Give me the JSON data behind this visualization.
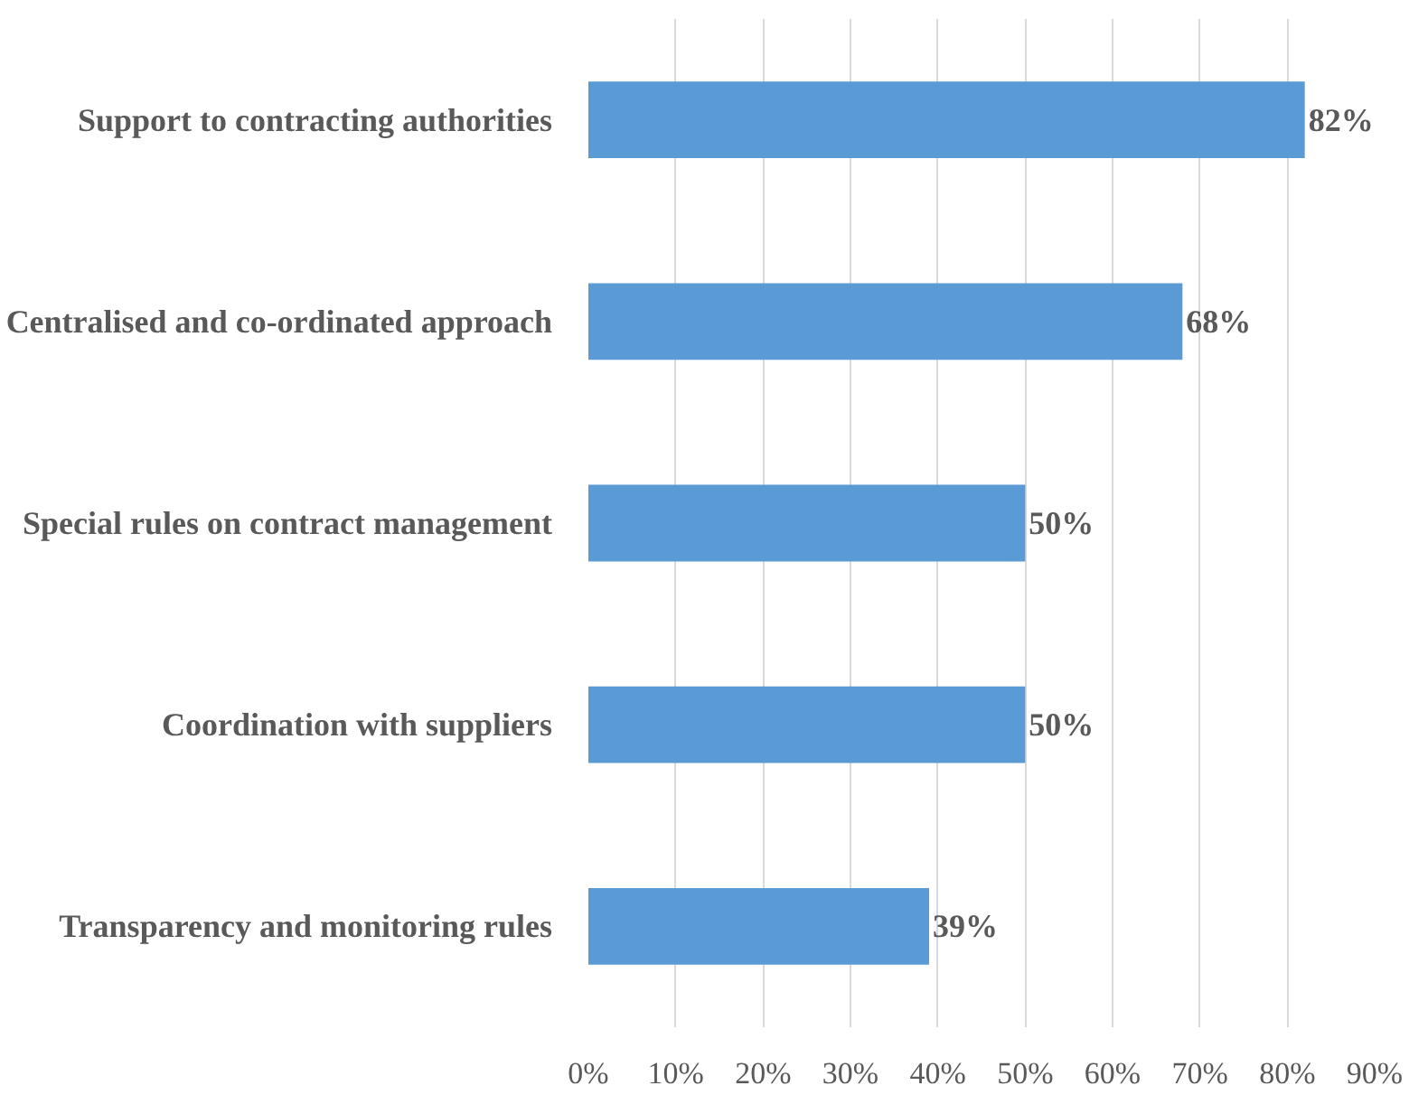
{
  "chart_data": {
    "type": "bar",
    "orientation": "horizontal",
    "categories": [
      "Support to contracting authorities",
      "Centralised and co-ordinated approach",
      "Special rules on contract management",
      "Coordination with suppliers",
      "Transparency and monitoring rules"
    ],
    "values": [
      82,
      68,
      50,
      50,
      39
    ],
    "value_labels": [
      "82%",
      "68%",
      "50%",
      "50%",
      "39%"
    ],
    "color": "#5b9bd5",
    "xlim": [
      0,
      90
    ],
    "xticks": [
      {
        "value": 0,
        "label": "0%"
      },
      {
        "value": 10,
        "label": "10%"
      },
      {
        "value": 20,
        "label": "20%"
      },
      {
        "value": 30,
        "label": "30%"
      },
      {
        "value": 40,
        "label": "40%"
      },
      {
        "value": 50,
        "label": "50%"
      },
      {
        "value": 60,
        "label": "60%"
      },
      {
        "value": 70,
        "label": "70%"
      },
      {
        "value": 80,
        "label": "80%"
      },
      {
        "value": 90,
        "label": "90%"
      }
    ],
    "grid": "x"
  }
}
